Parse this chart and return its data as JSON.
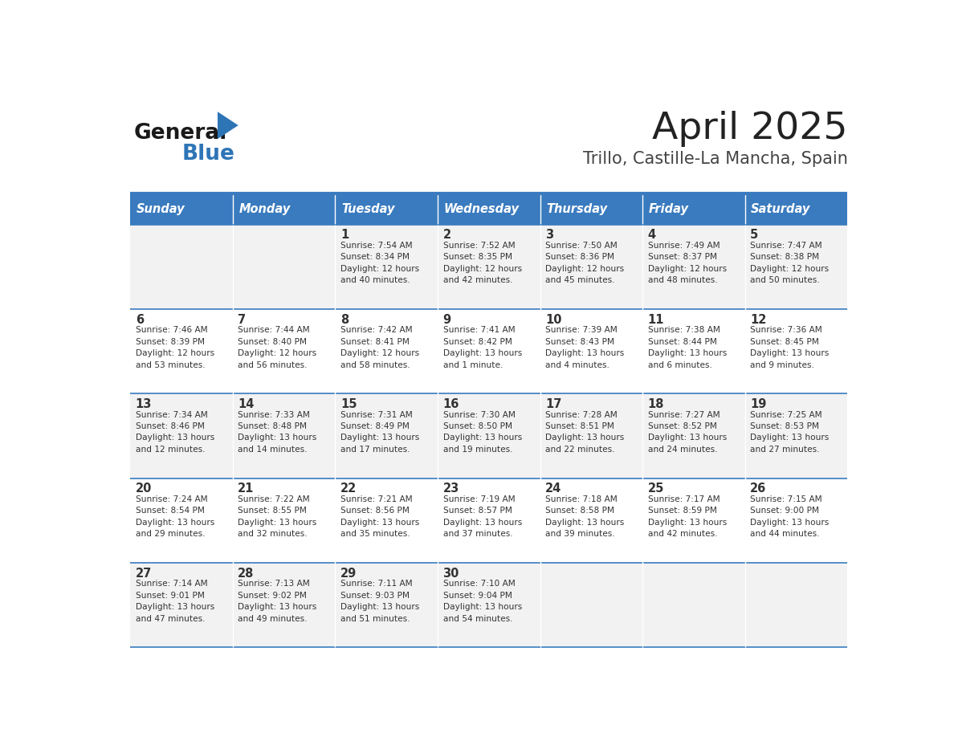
{
  "title": "April 2025",
  "subtitle": "Trillo, Castille-La Mancha, Spain",
  "days_of_week": [
    "Sunday",
    "Monday",
    "Tuesday",
    "Wednesday",
    "Thursday",
    "Friday",
    "Saturday"
  ],
  "header_bg": "#3A7BBF",
  "header_text": "#FFFFFF",
  "row_bg_odd": "#F2F2F2",
  "row_bg_even": "#FFFFFF",
  "cell_text_color": "#333333",
  "border_color": "#3A7BBF",
  "title_color": "#222222",
  "subtitle_color": "#444444",
  "logo_general_color": "#1A1A1A",
  "logo_blue_color": "#2E75B6",
  "calendar_data": [
    [
      {
        "day": null,
        "sunrise": null,
        "sunset": null,
        "daylight": null
      },
      {
        "day": null,
        "sunrise": null,
        "sunset": null,
        "daylight": null
      },
      {
        "day": 1,
        "sunrise": "7:54 AM",
        "sunset": "8:34 PM",
        "daylight": "12 hours\nand 40 minutes."
      },
      {
        "day": 2,
        "sunrise": "7:52 AM",
        "sunset": "8:35 PM",
        "daylight": "12 hours\nand 42 minutes."
      },
      {
        "day": 3,
        "sunrise": "7:50 AM",
        "sunset": "8:36 PM",
        "daylight": "12 hours\nand 45 minutes."
      },
      {
        "day": 4,
        "sunrise": "7:49 AM",
        "sunset": "8:37 PM",
        "daylight": "12 hours\nand 48 minutes."
      },
      {
        "day": 5,
        "sunrise": "7:47 AM",
        "sunset": "8:38 PM",
        "daylight": "12 hours\nand 50 minutes."
      }
    ],
    [
      {
        "day": 6,
        "sunrise": "7:46 AM",
        "sunset": "8:39 PM",
        "daylight": "12 hours\nand 53 minutes."
      },
      {
        "day": 7,
        "sunrise": "7:44 AM",
        "sunset": "8:40 PM",
        "daylight": "12 hours\nand 56 minutes."
      },
      {
        "day": 8,
        "sunrise": "7:42 AM",
        "sunset": "8:41 PM",
        "daylight": "12 hours\nand 58 minutes."
      },
      {
        "day": 9,
        "sunrise": "7:41 AM",
        "sunset": "8:42 PM",
        "daylight": "13 hours\nand 1 minute."
      },
      {
        "day": 10,
        "sunrise": "7:39 AM",
        "sunset": "8:43 PM",
        "daylight": "13 hours\nand 4 minutes."
      },
      {
        "day": 11,
        "sunrise": "7:38 AM",
        "sunset": "8:44 PM",
        "daylight": "13 hours\nand 6 minutes."
      },
      {
        "day": 12,
        "sunrise": "7:36 AM",
        "sunset": "8:45 PM",
        "daylight": "13 hours\nand 9 minutes."
      }
    ],
    [
      {
        "day": 13,
        "sunrise": "7:34 AM",
        "sunset": "8:46 PM",
        "daylight": "13 hours\nand 12 minutes."
      },
      {
        "day": 14,
        "sunrise": "7:33 AM",
        "sunset": "8:48 PM",
        "daylight": "13 hours\nand 14 minutes."
      },
      {
        "day": 15,
        "sunrise": "7:31 AM",
        "sunset": "8:49 PM",
        "daylight": "13 hours\nand 17 minutes."
      },
      {
        "day": 16,
        "sunrise": "7:30 AM",
        "sunset": "8:50 PM",
        "daylight": "13 hours\nand 19 minutes."
      },
      {
        "day": 17,
        "sunrise": "7:28 AM",
        "sunset": "8:51 PM",
        "daylight": "13 hours\nand 22 minutes."
      },
      {
        "day": 18,
        "sunrise": "7:27 AM",
        "sunset": "8:52 PM",
        "daylight": "13 hours\nand 24 minutes."
      },
      {
        "day": 19,
        "sunrise": "7:25 AM",
        "sunset": "8:53 PM",
        "daylight": "13 hours\nand 27 minutes."
      }
    ],
    [
      {
        "day": 20,
        "sunrise": "7:24 AM",
        "sunset": "8:54 PM",
        "daylight": "13 hours\nand 29 minutes."
      },
      {
        "day": 21,
        "sunrise": "7:22 AM",
        "sunset": "8:55 PM",
        "daylight": "13 hours\nand 32 minutes."
      },
      {
        "day": 22,
        "sunrise": "7:21 AM",
        "sunset": "8:56 PM",
        "daylight": "13 hours\nand 35 minutes."
      },
      {
        "day": 23,
        "sunrise": "7:19 AM",
        "sunset": "8:57 PM",
        "daylight": "13 hours\nand 37 minutes."
      },
      {
        "day": 24,
        "sunrise": "7:18 AM",
        "sunset": "8:58 PM",
        "daylight": "13 hours\nand 39 minutes."
      },
      {
        "day": 25,
        "sunrise": "7:17 AM",
        "sunset": "8:59 PM",
        "daylight": "13 hours\nand 42 minutes."
      },
      {
        "day": 26,
        "sunrise": "7:15 AM",
        "sunset": "9:00 PM",
        "daylight": "13 hours\nand 44 minutes."
      }
    ],
    [
      {
        "day": 27,
        "sunrise": "7:14 AM",
        "sunset": "9:01 PM",
        "daylight": "13 hours\nand 47 minutes."
      },
      {
        "day": 28,
        "sunrise": "7:13 AM",
        "sunset": "9:02 PM",
        "daylight": "13 hours\nand 49 minutes."
      },
      {
        "day": 29,
        "sunrise": "7:11 AM",
        "sunset": "9:03 PM",
        "daylight": "13 hours\nand 51 minutes."
      },
      {
        "day": 30,
        "sunrise": "7:10 AM",
        "sunset": "9:04 PM",
        "daylight": "13 hours\nand 54 minutes."
      },
      {
        "day": null,
        "sunrise": null,
        "sunset": null,
        "daylight": null
      },
      {
        "day": null,
        "sunrise": null,
        "sunset": null,
        "daylight": null
      },
      {
        "day": null,
        "sunrise": null,
        "sunset": null,
        "daylight": null
      }
    ]
  ]
}
